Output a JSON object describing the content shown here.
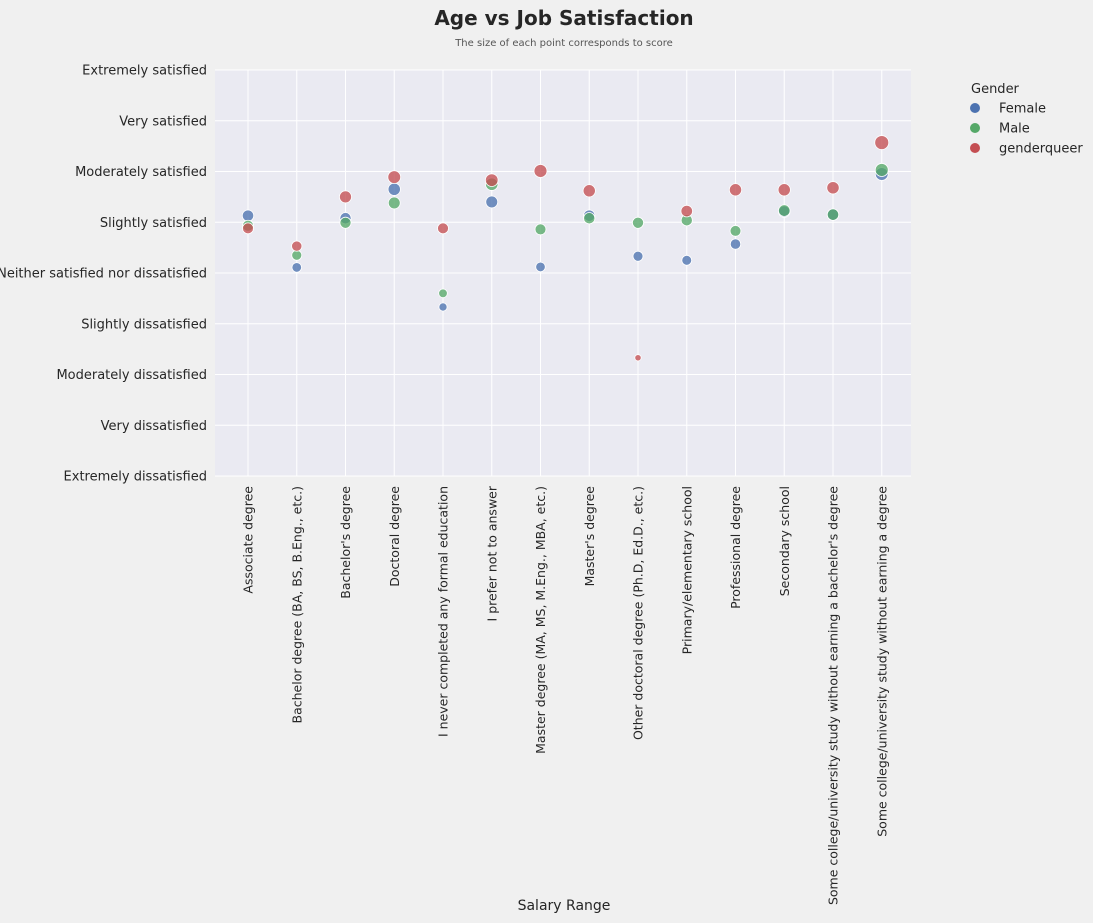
{
  "chart_data": {
    "type": "scatter",
    "title": "Age vs Job Satisfaction",
    "subtitle": "The size of each point corresponds to score",
    "xlabel": "Salary Range",
    "ylabel": "",
    "categories": [
      "Associate degree",
      "Bachelor degree (BA, BS, B.Eng., etc.)",
      "Bachelor's degree",
      "Doctoral degree",
      "I never completed any formal education",
      "I prefer not to answer",
      "Master degree (MA, MS, M.Eng., MBA, etc.)",
      "Master's degree",
      "Other doctoral degree (Ph.D, Ed.D., etc.)",
      "Primary/elementary school",
      "Professional degree",
      "Secondary school",
      "Some college/university study without earning a bachelor's degree",
      "Some college/university study without earning a degree"
    ],
    "y_ticks": [
      "Extremely dissatisfied",
      "Very dissatisfied",
      "Moderately dissatisfied",
      "Slightly dissatisfied",
      "Neither satisfied nor dissatisfied",
      "Slightly satisfied",
      "Moderately satisfied",
      "Very satisfied",
      "Extremely satisfied"
    ],
    "ylim": [
      0,
      8
    ],
    "grid": true,
    "legend": {
      "title": "Gender",
      "position": "outside-right"
    },
    "series": [
      {
        "name": "Female",
        "color": "#4c72b0",
        "values": [
          5.13,
          4.11,
          5.08,
          5.65,
          3.33,
          5.4,
          4.12,
          5.13,
          4.33,
          4.25,
          4.57,
          5.21,
          5.15,
          5.95
        ],
        "sizes": [
          5.13,
          4.11,
          5.08,
          5.65,
          3.33,
          5.4,
          4.12,
          5.13,
          4.33,
          4.25,
          4.57,
          5.21,
          5.15,
          5.95
        ]
      },
      {
        "name": "Male",
        "color": "#55a868",
        "values": [
          4.93,
          4.35,
          4.99,
          5.38,
          3.6,
          5.75,
          4.86,
          5.08,
          4.99,
          5.04,
          4.83,
          5.23,
          5.15,
          6.03
        ],
        "sizes": [
          4.93,
          4.35,
          4.99,
          5.38,
          3.6,
          5.75,
          4.86,
          5.08,
          4.99,
          5.04,
          4.83,
          5.23,
          5.15,
          6.03
        ]
      },
      {
        "name": "genderqueer",
        "color": "#c44e52",
        "values": [
          4.88,
          4.53,
          5.5,
          5.89,
          4.88,
          5.83,
          6.01,
          5.62,
          2.33,
          5.22,
          5.64,
          5.64,
          5.68,
          6.57
        ],
        "sizes": [
          4.88,
          4.53,
          5.5,
          5.89,
          4.88,
          5.83,
          6.01,
          5.62,
          2.33,
          5.22,
          5.64,
          5.64,
          5.68,
          6.57
        ]
      }
    ]
  }
}
